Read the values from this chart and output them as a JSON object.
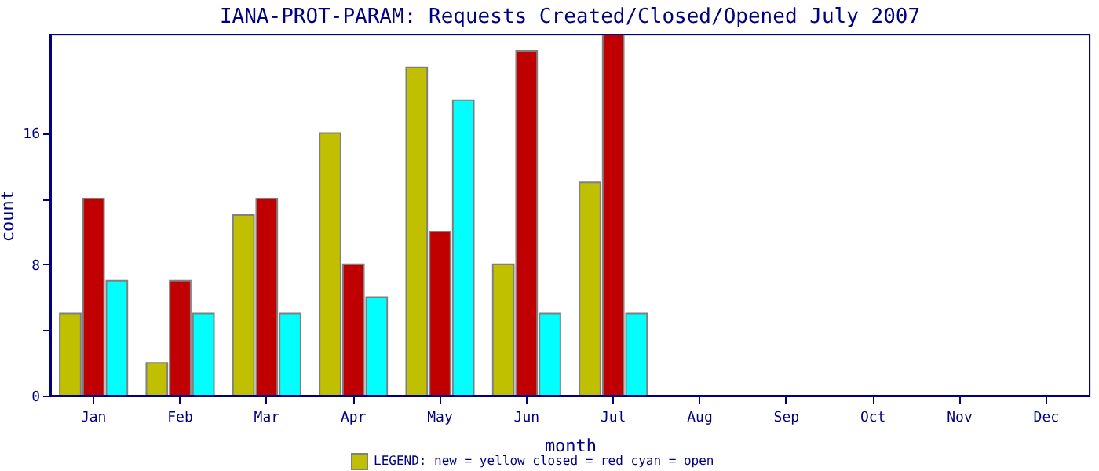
{
  "chart_data": {
    "type": "bar",
    "title": "IANA-PROT-PARAM: Requests Created/Closed/Opened July 2007",
    "xlabel": "month",
    "ylabel": "count",
    "categories": [
      "Jan",
      "Feb",
      "Mar",
      "Apr",
      "May",
      "Jun",
      "Jul",
      "Aug",
      "Sep",
      "Oct",
      "Nov",
      "Dec"
    ],
    "series": [
      {
        "color": "#c0c000",
        "values": [
          5,
          2,
          11,
          16,
          20,
          8,
          13,
          null,
          null,
          null,
          null,
          null
        ]
      },
      {
        "color": "#c00000",
        "values": [
          12,
          7,
          12,
          8,
          10,
          21,
          22,
          null,
          null,
          null,
          null,
          null
        ]
      },
      {
        "color": "#00ffff",
        "values": [
          7,
          5,
          5,
          6,
          18,
          5,
          5,
          null,
          null,
          null,
          null,
          null
        ]
      }
    ],
    "ylim": [
      0,
      22
    ],
    "yticks": [
      0,
      {
        "value": 4,
        "label": null
      },
      8,
      {
        "value": 12,
        "label": null
      },
      16
    ],
    "grid": false,
    "annotations": [
      "LEGEND: new = yellow  closed = red  cyan = open"
    ]
  }
}
